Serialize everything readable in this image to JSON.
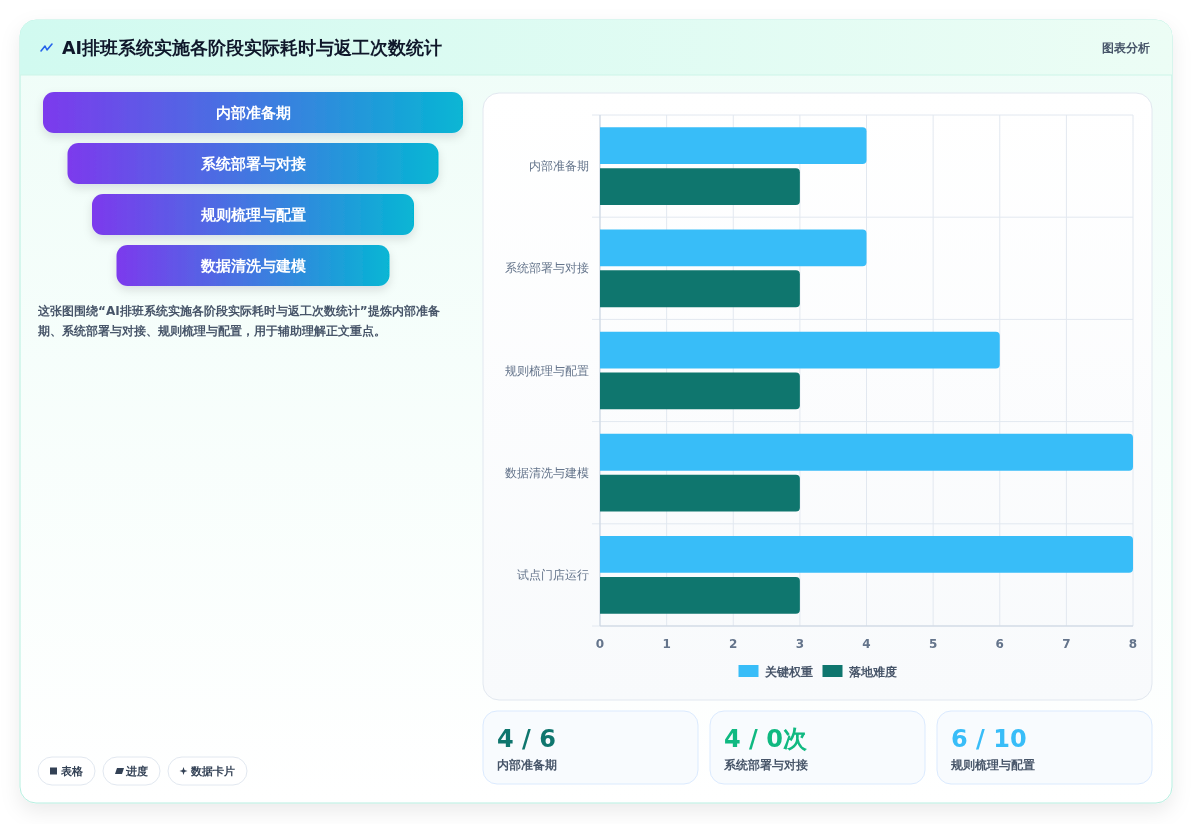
{
  "chart_data": [
    {
      "type": "other",
      "title": "AI排班系统实施各阶段实际耗时与返工次数统计",
      "categories": [
        "内部准备期",
        "系统部署与对接",
        "规则梳理与配置",
        "数据清洗与建模"
      ],
      "annotations": [
        "图表分析",
        "这张图围绕“AI排班系统实施各阶段实际耗时与返工次数统计”提炼内部准备期、系统部署与对接、规则梳理与配置，用于辅助理解正文重点。",
        "表格",
        "进度",
        "数据卡片"
      ]
    },
    {
      "type": "bar",
      "orientation": "horizontal",
      "categories": [
        "内部准备期",
        "系统部署与对接",
        "规则梳理与配置",
        "数据清洗与建模",
        "试点门店运行"
      ],
      "series": [
        {
          "name": "关键权重",
          "color": "#38bdf8",
          "values": [
            4,
            4,
            6,
            8,
            8
          ]
        },
        {
          "name": "落地难度",
          "color": "#0f766e",
          "values": [
            3,
            3,
            3,
            3,
            3
          ]
        }
      ],
      "xlim": [
        0,
        8
      ],
      "xticks": [
        0,
        1,
        2,
        3,
        4,
        5,
        6,
        7,
        8
      ],
      "grid": true,
      "legend": "bottom"
    },
    {
      "type": "other",
      "categories": [
        "内部准备期",
        "系统部署与对接",
        "规则梳理与配置"
      ],
      "value_labels": [
        "4 / 6",
        "4 / 0次",
        "6 / 10"
      ]
    }
  ]
}
